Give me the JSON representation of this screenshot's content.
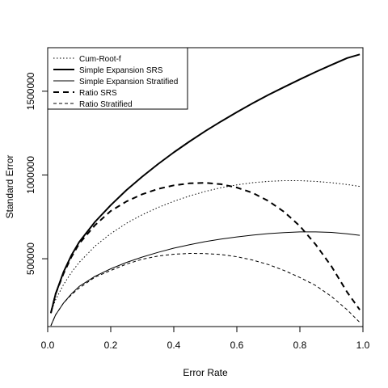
{
  "chart_data": {
    "type": "line",
    "title": "",
    "xlabel": "Error Rate",
    "ylabel": "Standard Error",
    "xlim": [
      0,
      1
    ],
    "ylim": [
      95000,
      1760000
    ],
    "x_ticks": [
      0.0,
      0.2,
      0.4,
      0.6,
      0.8,
      1.0
    ],
    "x_tick_labels": [
      "0.0",
      "0.2",
      "0.4",
      "0.6",
      "0.8",
      "1.0"
    ],
    "y_ticks": [
      500000,
      1000000,
      1500000
    ],
    "y_tick_labels": [
      "500000",
      "1000000",
      "1500000"
    ],
    "grid": false,
    "legend_position": "top-left",
    "x": [
      0.01,
      0.025,
      0.05,
      0.075,
      0.1,
      0.15,
      0.2,
      0.25,
      0.3,
      0.35,
      0.4,
      0.45,
      0.5,
      0.55,
      0.6,
      0.65,
      0.7,
      0.75,
      0.8,
      0.85,
      0.9,
      0.95,
      0.99
    ],
    "series": [
      {
        "name": "Cum-Root-f",
        "line_style": "dotted",
        "stroke_width": 1,
        "values": [
          180000,
          255000,
          345000,
          418000,
          478000,
          575000,
          650000,
          712000,
          763000,
          806000,
          843000,
          875000,
          902000,
          924000,
          941000,
          954000,
          962000,
          966000,
          966000,
          962000,
          954000,
          943000,
          932000
        ]
      },
      {
        "name": "Simple Expansion SRS",
        "line_style": "solid",
        "stroke_width": 2,
        "values": [
          175000,
          290000,
          420000,
          520000,
          600000,
          720000,
          820000,
          910000,
          990000,
          1065000,
          1135000,
          1200000,
          1262000,
          1320000,
          1375000,
          1428000,
          1478000,
          1525000,
          1571000,
          1615000,
          1657000,
          1698000,
          1720000
        ]
      },
      {
        "name": "Simple Expansion Stratified",
        "line_style": "solid",
        "stroke_width": 1,
        "values": [
          100000,
          165000,
          235000,
          290000,
          335000,
          395000,
          440000,
          478000,
          510000,
          538000,
          563000,
          584000,
          602000,
          617000,
          630000,
          641000,
          650000,
          656000,
          660000,
          660000,
          657000,
          649000,
          640000
        ]
      },
      {
        "name": "Ratio SRS",
        "line_style": "dashed",
        "stroke_width": 2,
        "values": [
          175000,
          290000,
          410000,
          510000,
          590000,
          700000,
          785000,
          842000,
          885000,
          917000,
          938000,
          950000,
          953000,
          945000,
          925000,
          893000,
          845000,
          780000,
          695000,
          585000,
          455000,
          300000,
          195000
        ]
      },
      {
        "name": "Ratio Stratified",
        "line_style": "dashed",
        "stroke_width": 1,
        "values": [
          100000,
          165000,
          235000,
          285000,
          325000,
          390000,
          430000,
          468000,
          497000,
          516000,
          527000,
          532000,
          531000,
          525000,
          512000,
          492000,
          465000,
          430000,
          388000,
          340000,
          275000,
          195000,
          120000
        ]
      }
    ]
  }
}
